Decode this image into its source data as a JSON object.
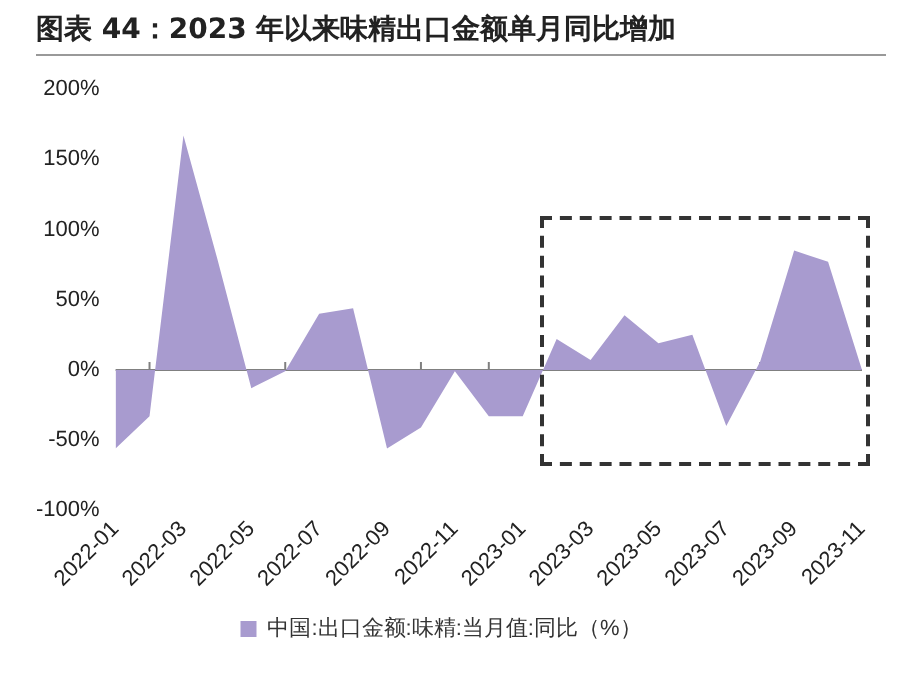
{
  "chart_data": {
    "type": "area",
    "title": "图表 44：2023 年以来味精出口金额单月同比增加",
    "categories": [
      "2022-01",
      null,
      "2022-03",
      null,
      "2022-05",
      null,
      "2022-07",
      null,
      "2022-09",
      null,
      "2022-11",
      null,
      "2023-01",
      null,
      "2023-03",
      null,
      "2023-05",
      null,
      "2023-07",
      null,
      "2023-09",
      null,
      "2023-11"
    ],
    "series": [
      {
        "name": "中国:出口金额:味精:当月值:同比（%）",
        "color": "#a89bcf",
        "values": [
          -56,
          -33,
          167,
          79,
          -13,
          -1,
          40,
          44,
          -56,
          -41,
          -1,
          -33,
          -33,
          22,
          7,
          39,
          19,
          25,
          -40,
          6,
          85,
          77,
          0
        ]
      }
    ],
    "ylim": [
      -100,
      200
    ],
    "yticks": [
      {
        "value": -100,
        "label": "-100%"
      },
      {
        "value": -50,
        "label": "-50%"
      },
      {
        "value": 0,
        "label": "0%"
      },
      {
        "value": 50,
        "label": "50%"
      },
      {
        "value": 100,
        "label": "100%"
      },
      {
        "value": 150,
        "label": "150%"
      },
      {
        "value": 200,
        "label": "200%"
      }
    ],
    "ref_lines": [
      {
        "axis": "y",
        "value": 0,
        "color": "#808080"
      }
    ],
    "grid": false,
    "legend": "bottom"
  }
}
